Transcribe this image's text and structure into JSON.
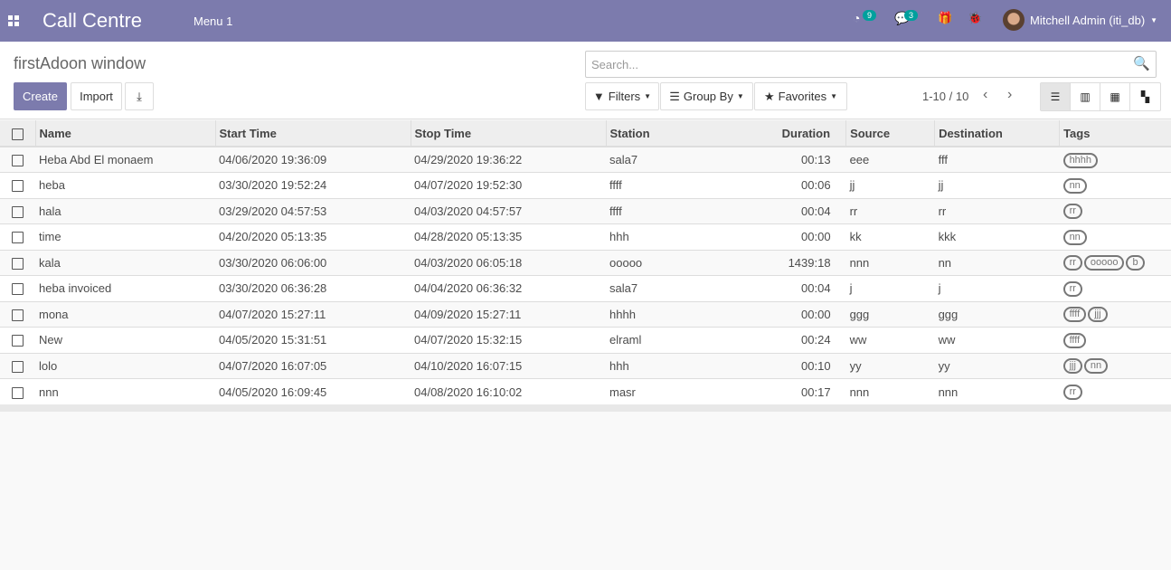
{
  "navbar": {
    "app_name": "Call Centre",
    "menu": "Menu 1",
    "activity_count": "9",
    "message_count": "3",
    "user": "Mitchell Admin (iti_db)"
  },
  "control_panel": {
    "title": "firstAdoon window",
    "create": "Create",
    "import": "Import",
    "search_placeholder": "Search...",
    "filters": "Filters",
    "group_by": "Group By",
    "favorites": "Favorites",
    "pager": "1-10 / 10",
    "active_view": "list"
  },
  "table": {
    "columns": [
      "Name",
      "Start Time",
      "Stop Time",
      "Station",
      "Duration",
      "Source",
      "Destination",
      "Tags"
    ],
    "rows": [
      {
        "name": "Heba Abd El monaem",
        "start": "04/06/2020 19:36:09",
        "stop": "04/29/2020 19:36:22",
        "station": "sala7",
        "duration": "00:13",
        "source": "eee",
        "destination": "fff",
        "tags": [
          "hhhh"
        ]
      },
      {
        "name": "heba",
        "start": "03/30/2020 19:52:24",
        "stop": "04/07/2020 19:52:30",
        "station": "ffff",
        "duration": "00:06",
        "source": "jj",
        "destination": "jj",
        "tags": [
          "nn"
        ]
      },
      {
        "name": "hala",
        "start": "03/29/2020 04:57:53",
        "stop": "04/03/2020 04:57:57",
        "station": "ffff",
        "duration": "00:04",
        "source": "rr",
        "destination": "rr",
        "tags": [
          "rr"
        ]
      },
      {
        "name": "time",
        "start": "04/20/2020 05:13:35",
        "stop": "04/28/2020 05:13:35",
        "station": "hhh",
        "duration": "00:00",
        "source": "kk",
        "destination": "kkk",
        "tags": [
          "nn"
        ]
      },
      {
        "name": "kala",
        "start": "03/30/2020 06:06:00",
        "stop": "04/03/2020 06:05:18",
        "station": "ooooo",
        "duration": "1439:18",
        "source": "nnn",
        "destination": "nn",
        "tags": [
          "rr",
          "ooooo",
          "b"
        ]
      },
      {
        "name": "heba invoiced",
        "start": "03/30/2020 06:36:28",
        "stop": "04/04/2020 06:36:32",
        "station": "sala7",
        "duration": "00:04",
        "source": "j",
        "destination": "j",
        "tags": [
          "rr"
        ]
      },
      {
        "name": "mona",
        "start": "04/07/2020 15:27:11",
        "stop": "04/09/2020 15:27:11",
        "station": "hhhh",
        "duration": "00:00",
        "source": "ggg",
        "destination": "ggg",
        "tags": [
          "ffff",
          "jjj"
        ]
      },
      {
        "name": "New",
        "start": "04/05/2020 15:31:51",
        "stop": "04/07/2020 15:32:15",
        "station": "elraml",
        "duration": "00:24",
        "source": "ww",
        "destination": "ww",
        "tags": [
          "ffff"
        ]
      },
      {
        "name": "lolo",
        "start": "04/07/2020 16:07:05",
        "stop": "04/10/2020 16:07:15",
        "station": "hhh",
        "duration": "00:10",
        "source": "yy",
        "destination": "yy",
        "tags": [
          "jjj",
          "nn"
        ]
      },
      {
        "name": "nnn",
        "start": "04/05/2020 16:09:45",
        "stop": "04/08/2020 16:10:02",
        "station": "masr",
        "duration": "00:17",
        "source": "nnn",
        "destination": "nnn",
        "tags": [
          "rr"
        ]
      }
    ]
  }
}
